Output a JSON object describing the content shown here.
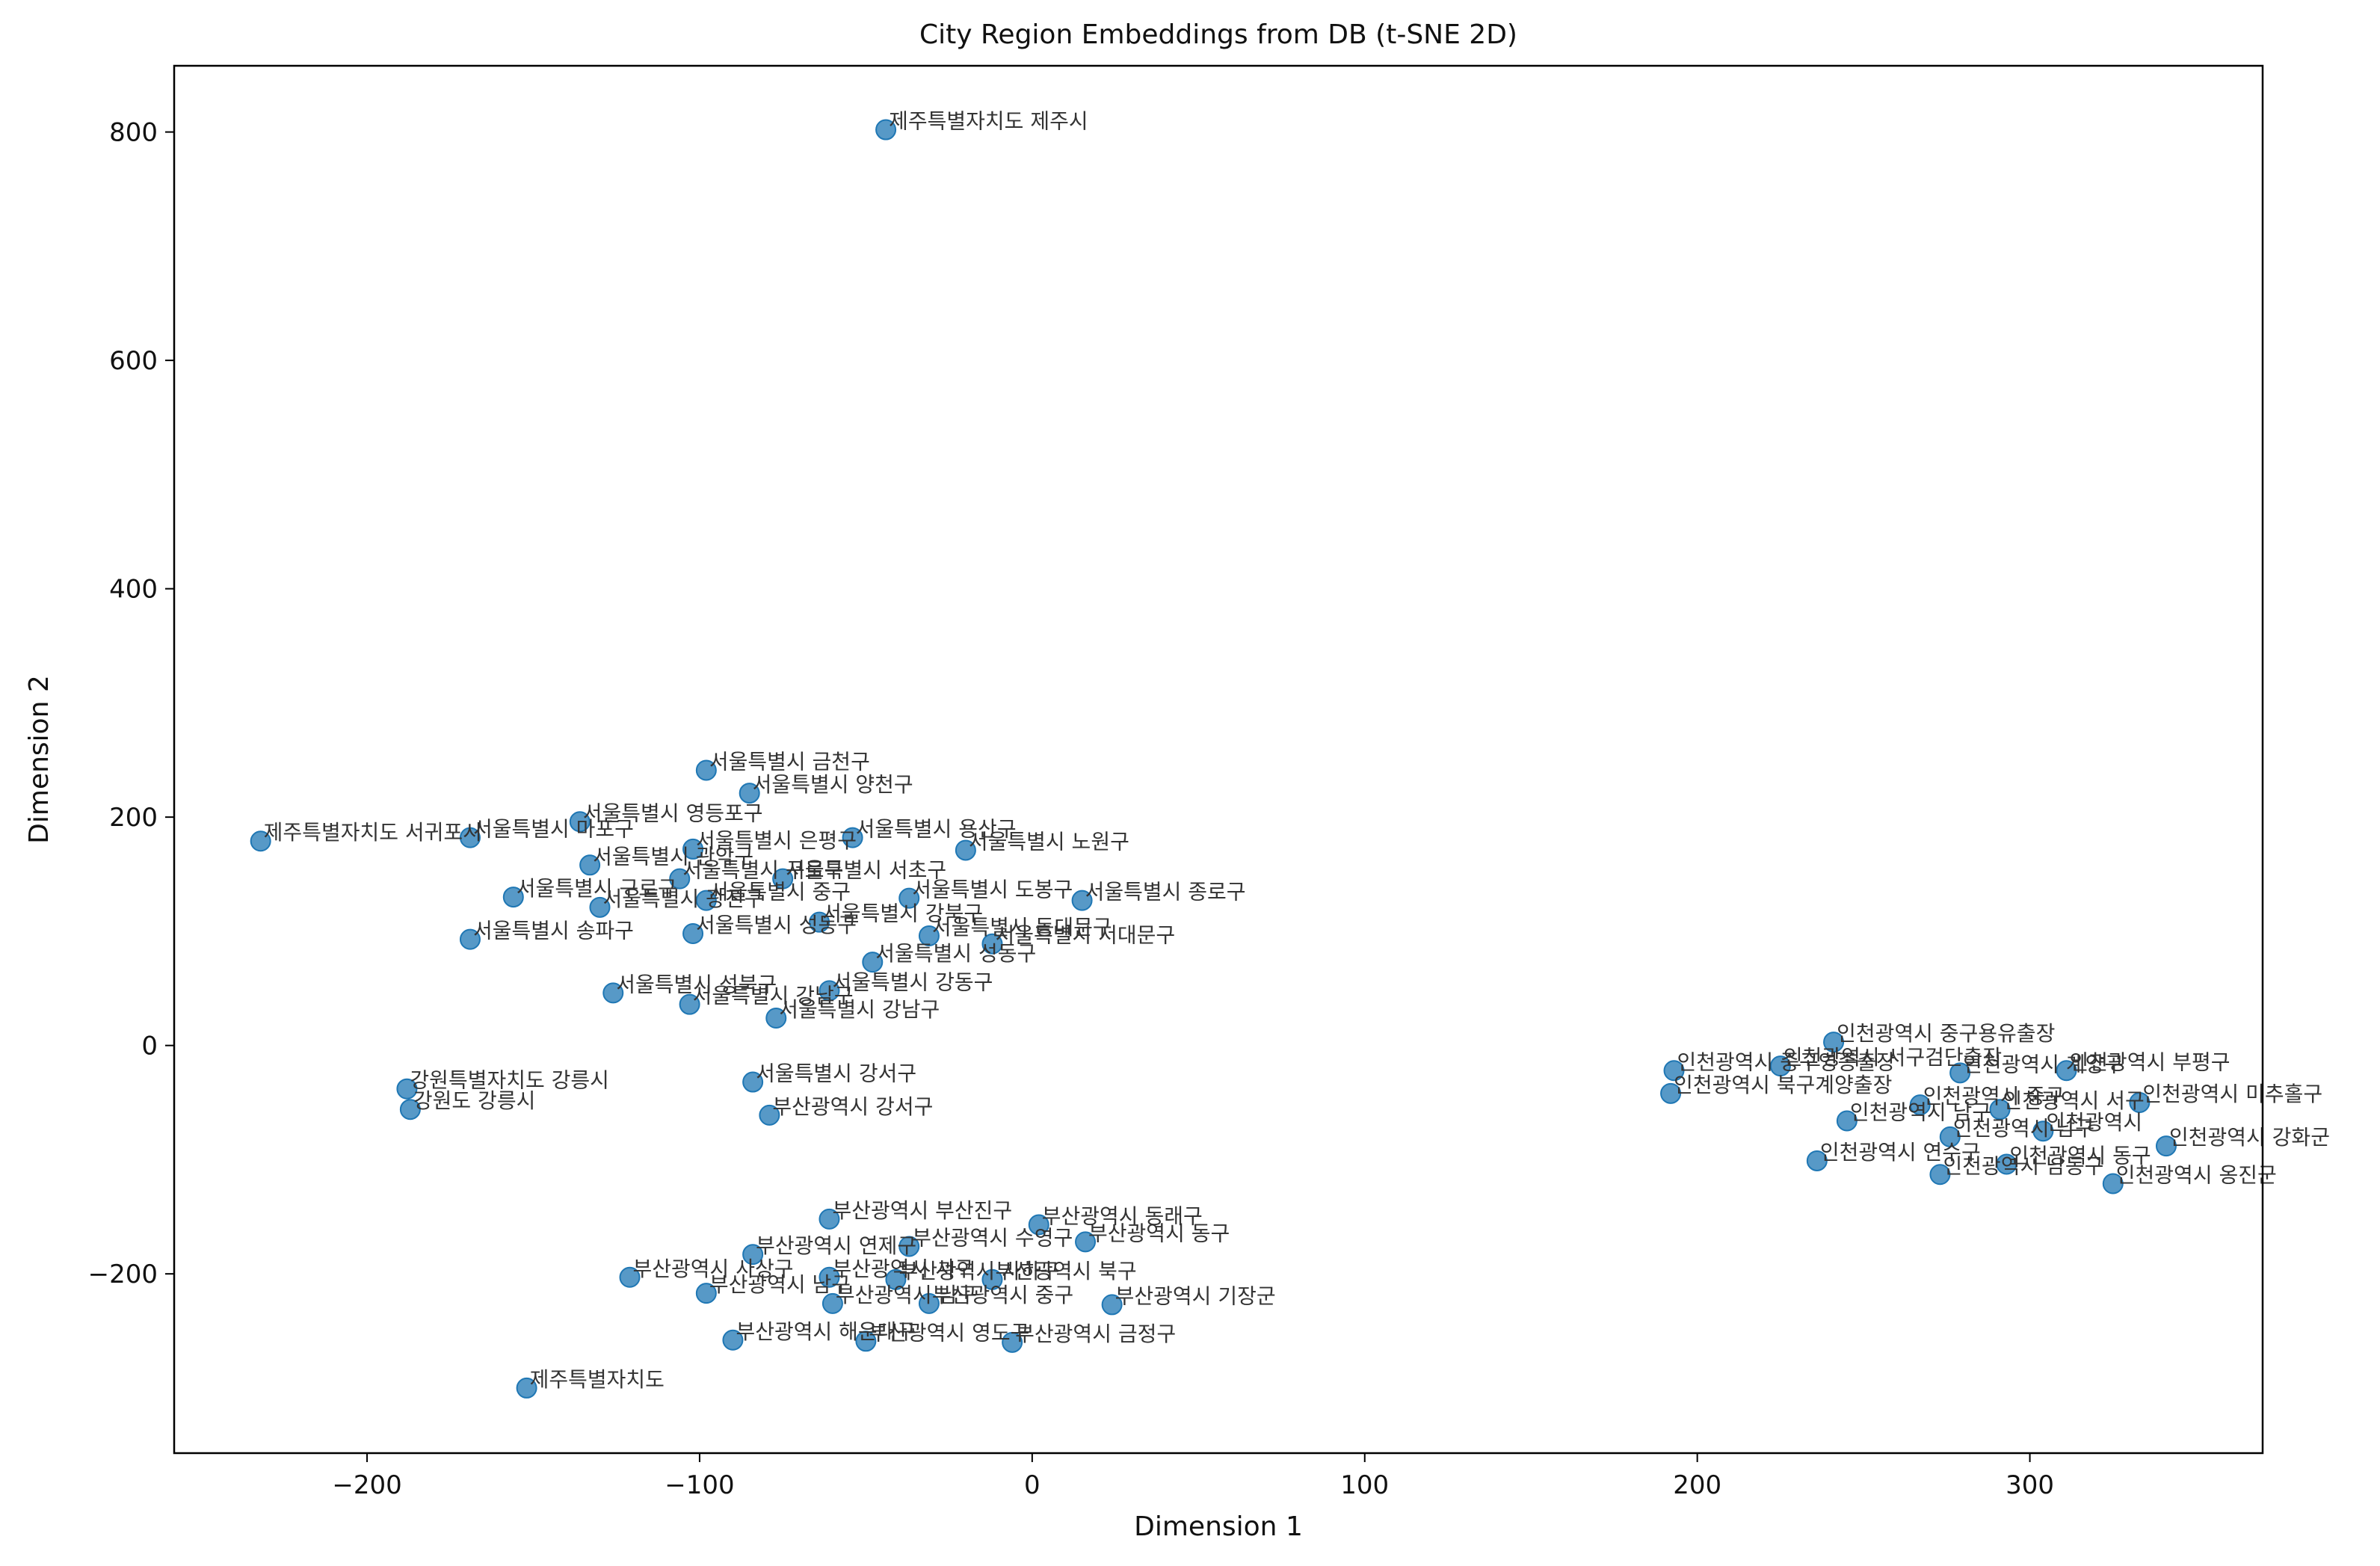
{
  "chart_data": {
    "type": "scatter",
    "title": "City Region Embeddings from DB (t-SNE 2D)",
    "xlabel": "Dimension 1",
    "ylabel": "Dimension 2",
    "xlim": [
      -258,
      370
    ],
    "ylim": [
      -357,
      858
    ],
    "xticks": [
      {
        "value": -200,
        "label": "−200"
      },
      {
        "value": -100,
        "label": "−100"
      },
      {
        "value": 0,
        "label": "0"
      },
      {
        "value": 100,
        "label": "100"
      },
      {
        "value": 200,
        "label": "200"
      },
      {
        "value": 300,
        "label": "300"
      }
    ],
    "yticks": [
      {
        "value": -200,
        "label": "−200"
      },
      {
        "value": 0,
        "label": "0"
      },
      {
        "value": 200,
        "label": "200"
      },
      {
        "value": 400,
        "label": "400"
      },
      {
        "value": 600,
        "label": "600"
      },
      {
        "value": 800,
        "label": "800"
      }
    ],
    "grid": false,
    "marker_color": "#1f77b4",
    "points": [
      {
        "x": -44,
        "y": 802,
        "label": "제주특별자치도 제주시"
      },
      {
        "x": -98,
        "y": 241,
        "label": "서울특별시 금천구"
      },
      {
        "x": -85,
        "y": 221,
        "label": "서울특별시 양천구"
      },
      {
        "x": -136,
        "y": 196,
        "label": "서울특별시 영등포구"
      },
      {
        "x": -232,
        "y": 179,
        "label": "제주특별자치도 서귀포시"
      },
      {
        "x": -169,
        "y": 182,
        "label": "서울특별시 마포구"
      },
      {
        "x": -102,
        "y": 172,
        "label": "서울특별시 은평구"
      },
      {
        "x": -54,
        "y": 182,
        "label": "서울특별시 용산구"
      },
      {
        "x": -20,
        "y": 171,
        "label": "서울특별시 노원구"
      },
      {
        "x": -133,
        "y": 158,
        "label": "서울특별시 관악구"
      },
      {
        "x": -106,
        "y": 146,
        "label": "서울특별시 구로구"
      },
      {
        "x": -75,
        "y": 146,
        "label": "서울특별시 서초구"
      },
      {
        "x": -156,
        "y": 130,
        "label": "서울특별시 구로구"
      },
      {
        "x": -130,
        "y": 121,
        "label": "서울특별시 광진구"
      },
      {
        "x": -98,
        "y": 127,
        "label": "서울특별시 중구"
      },
      {
        "x": -37,
        "y": 129,
        "label": "서울특별시 도봉구"
      },
      {
        "x": 15,
        "y": 127,
        "label": "서울특별시 종로구"
      },
      {
        "x": -64,
        "y": 108,
        "label": "서울특별시 강북구"
      },
      {
        "x": -102,
        "y": 98,
        "label": "서울특별시 성동구"
      },
      {
        "x": -169,
        "y": 93,
        "label": "서울특별시 송파구"
      },
      {
        "x": -31,
        "y": 96,
        "label": "서울특별시 동대문구"
      },
      {
        "x": -12,
        "y": 89,
        "label": "서울특별시 서대문구"
      },
      {
        "x": -48,
        "y": 73,
        "label": "서울특별시 성동구"
      },
      {
        "x": -126,
        "y": 46,
        "label": "서울특별시 성북구"
      },
      {
        "x": -61,
        "y": 48,
        "label": "서울특별시 강동구"
      },
      {
        "x": -103,
        "y": 36,
        "label": "서울특별시 강남구"
      },
      {
        "x": -77,
        "y": 24,
        "label": "서울특별시 강남구"
      },
      {
        "x": -84,
        "y": -32,
        "label": "서울특별시 강서구"
      },
      {
        "x": -79,
        "y": -61,
        "label": "부산광역시 강서구"
      },
      {
        "x": -188,
        "y": -38,
        "label": "강원특별자치도 강릉시"
      },
      {
        "x": -187,
        "y": -56,
        "label": "강원도 강릉시"
      },
      {
        "x": 241,
        "y": 3,
        "label": "인천광역시 중구용유출장"
      },
      {
        "x": 193,
        "y": -22,
        "label": "인천광역시 중구영종출장"
      },
      {
        "x": 225,
        "y": -18,
        "label": "인천광역시 서구검단출장"
      },
      {
        "x": 279,
        "y": -24,
        "label": "인천광역시 계양구"
      },
      {
        "x": 311,
        "y": -22,
        "label": "인천광역시 부평구"
      },
      {
        "x": 192,
        "y": -42,
        "label": "인천광역시 북구계양출장"
      },
      {
        "x": 267,
        "y": -52,
        "label": "인천광역시 중구"
      },
      {
        "x": 291,
        "y": -56,
        "label": "인천광역시 서구"
      },
      {
        "x": 333,
        "y": -50,
        "label": "인천광역시 미추홀구"
      },
      {
        "x": 245,
        "y": -66,
        "label": "인천광역시 남구"
      },
      {
        "x": 304,
        "y": -75,
        "label": "인천광역시"
      },
      {
        "x": 276,
        "y": -80,
        "label": "인천광역시 남구"
      },
      {
        "x": 341,
        "y": -88,
        "label": "인천광역시 강화군"
      },
      {
        "x": 236,
        "y": -101,
        "label": "인천광역시 연수구"
      },
      {
        "x": 293,
        "y": -104,
        "label": "인천광역시 동구"
      },
      {
        "x": 273,
        "y": -113,
        "label": "인천광역시 남동구"
      },
      {
        "x": 325,
        "y": -121,
        "label": "인천광역시 옹진군"
      },
      {
        "x": -61,
        "y": -152,
        "label": "부산광역시 부산진구"
      },
      {
        "x": 2,
        "y": -157,
        "label": "부산광역시 동래구"
      },
      {
        "x": -37,
        "y": -176,
        "label": "부산광역시 수영구"
      },
      {
        "x": 16,
        "y": -172,
        "label": "부산광역시 동구"
      },
      {
        "x": -84,
        "y": -183,
        "label": "부산광역시 연제구"
      },
      {
        "x": -121,
        "y": -203,
        "label": "부산광역시 사상구"
      },
      {
        "x": -61,
        "y": -203,
        "label": "부산광역시 서구"
      },
      {
        "x": -41,
        "y": -205,
        "label": "부산광역시 사하구"
      },
      {
        "x": -12,
        "y": -205,
        "label": "부산광역시 북구"
      },
      {
        "x": -98,
        "y": -217,
        "label": "부산광역시 남구"
      },
      {
        "x": -60,
        "y": -226,
        "label": "부산광역시 남구"
      },
      {
        "x": -31,
        "y": -226,
        "label": "부산광역시 중구"
      },
      {
        "x": 24,
        "y": -227,
        "label": "부산광역시 기장군"
      },
      {
        "x": -90,
        "y": -258,
        "label": "부산광역시 해운대구"
      },
      {
        "x": -50,
        "y": -259,
        "label": "부산광역시 영도구"
      },
      {
        "x": -6,
        "y": -260,
        "label": "부산광역시 금정구"
      },
      {
        "x": -152,
        "y": -300,
        "label": "제주특별자치도"
      }
    ]
  }
}
